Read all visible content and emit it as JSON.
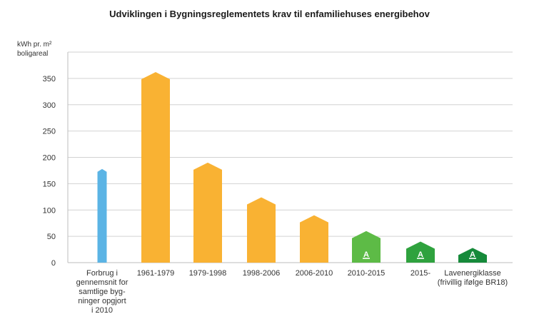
{
  "chart_data": {
    "type": "bar",
    "title": "Udviklingen i Bygningsreglementets krav til enfamiliehuses energibehov",
    "ylabel_lines": [
      "kWh pr. m²",
      "boligareal"
    ],
    "xlabel": "",
    "ylim": [
      0,
      400
    ],
    "yticks": [
      0,
      50,
      100,
      150,
      200,
      250,
      300,
      350
    ],
    "grid": true,
    "categories": [
      [
        "Forbrug i",
        "gennemsnit for",
        "samtlige byg-",
        "ninger opgjort",
        "i 2010"
      ],
      [
        "1961-1979"
      ],
      [
        "1979-1998"
      ],
      [
        "1998-2006"
      ],
      [
        "2006-2010"
      ],
      [
        "2010-2015"
      ],
      [
        "2015-"
      ],
      [
        "Lavenergiklasse",
        "(frivillig ifølge BR18)"
      ]
    ],
    "values": [
      178,
      362,
      190,
      124,
      90,
      60,
      40,
      28
    ],
    "bar_colors": [
      "#5bb4e5",
      "#f9b233",
      "#f9b233",
      "#f9b233",
      "#f9b233",
      "#5dbb46",
      "#2fa23e",
      "#168a3a"
    ],
    "badges": [
      "",
      "",
      "",
      "",
      "",
      "A",
      "A",
      "A"
    ],
    "badge_color": "#ffffff"
  }
}
